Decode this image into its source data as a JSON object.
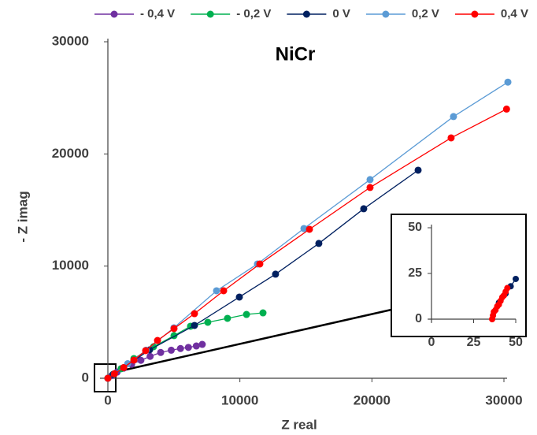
{
  "chart_data": [
    {
      "type": "scatter",
      "title": "NiCr",
      "xlabel": "Z real",
      "ylabel": "- Z imag",
      "xlim": [
        0,
        30000
      ],
      "ylim": [
        0,
        30000
      ],
      "xticks": [
        0,
        10000,
        20000,
        30000
      ],
      "yticks": [
        0,
        10000,
        20000,
        30000
      ],
      "legend": "top",
      "series": [
        {
          "name": "- 0,4 V",
          "color": "#7030a0",
          "x": [
            0,
            300,
            700,
            1200,
            1800,
            2500,
            3200,
            4000,
            4800,
            5500,
            6100,
            6700,
            7150
          ],
          "y": [
            0,
            250,
            550,
            900,
            1250,
            1600,
            1950,
            2300,
            2500,
            2650,
            2750,
            2880,
            3020
          ]
        },
        {
          "name": "- 0,2 V",
          "color": "#00b050",
          "x": [
            0,
            400,
            1000,
            1970,
            3460,
            5010,
            6260,
            7570,
            9060,
            10500,
            11750
          ],
          "y": [
            0,
            350,
            850,
            1760,
            2810,
            3800,
            4640,
            4990,
            5340,
            5690,
            5830
          ]
        },
        {
          "name": "0 V",
          "color": "#002060",
          "x": [
            0,
            400,
            1200,
            3160,
            6560,
            9960,
            12700,
            15980,
            19380,
            23500
          ],
          "y": [
            0,
            350,
            950,
            2530,
            4710,
            7240,
            9280,
            12020,
            15110,
            18550
          ]
        },
        {
          "name": "0,2 V",
          "color": "#5b9bd5",
          "x": [
            0,
            500,
            1500,
            2900,
            5000,
            8230,
            11330,
            14850,
            19860,
            26180,
            30300
          ],
          "y": [
            0,
            400,
            1300,
            2500,
            4500,
            7800,
            10190,
            13350,
            17710,
            23330,
            26400
          ]
        },
        {
          "name": "0,4 V",
          "color": "#ff0000",
          "x": [
            0,
            500,
            1200,
            1970,
            2860,
            3760,
            5010,
            6560,
            8770,
            11510,
            15270,
            19860,
            26000,
            30200
          ],
          "y": [
            0,
            400,
            950,
            1620,
            2460,
            3370,
            4430,
            5760,
            7800,
            10190,
            13280,
            17010,
            21430,
            24000
          ]
        }
      ]
    },
    {
      "type": "scatter",
      "xlim": [
        0,
        50
      ],
      "ylim": [
        0,
        50
      ],
      "xticks": [
        0,
        25,
        50
      ],
      "yticks": [
        0,
        25,
        50
      ],
      "series": [
        {
          "color": "#002060",
          "x": [
            40,
            44,
            47,
            50
          ],
          "y": [
            9,
            14,
            18,
            22
          ]
        },
        {
          "color": "#ff0000",
          "x": [
            36,
            36.5,
            37,
            38,
            39,
            40,
            41,
            42,
            43,
            44,
            45
          ],
          "y": [
            0,
            2,
            4,
            5,
            7,
            8,
            10,
            12,
            13,
            15,
            17
          ]
        }
      ]
    }
  ]
}
